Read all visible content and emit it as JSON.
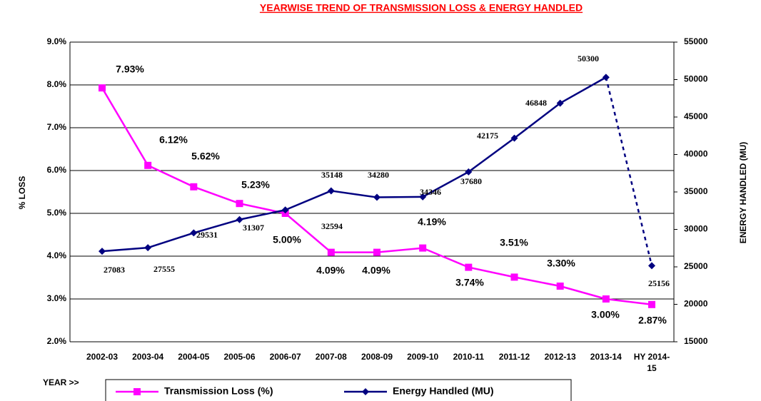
{
  "chart_data": {
    "type": "line",
    "title": "YEARWISE TREND OF TRANSMISSION LOSS & ENERGY HANDLED",
    "x_label": "YEAR >>",
    "y_label": "% LOSS",
    "y2_label": "ENERGY HANDLED (MU)",
    "categories": [
      "2002-03",
      "2003-04",
      "2004-05",
      "2005-06",
      "2006-07",
      "2007-08",
      "2008-09",
      "2009-10",
      "2010-11",
      "2011-12",
      "2012-13",
      "2013-14",
      "HY 2014-15"
    ],
    "series": [
      {
        "name": "Transmission Loss (%)",
        "color": "#ff00ff",
        "marker": "square",
        "values": [
          7.93,
          6.12,
          5.62,
          5.23,
          5.0,
          4.09,
          4.09,
          4.19,
          3.74,
          3.51,
          3.3,
          3.0,
          2.87
        ],
        "value_labels": [
          "7.93%",
          "6.12%",
          "5.62%",
          "5.23%",
          "5.00%",
          "4.09%",
          "4.09%",
          "4.19%",
          "3.74%",
          "3.51%",
          "3.30%",
          "3.00%",
          "2.87%"
        ]
      },
      {
        "name": "Energy Handled (MU)",
        "color": "#000080",
        "marker": "diamond",
        "axis": "y2",
        "dash_last": true,
        "values": [
          27083,
          27555,
          29531,
          31307,
          32594,
          35148,
          34280,
          34346,
          37680,
          42175,
          46848,
          50300,
          25156
        ]
      }
    ],
    "ylim": [
      2,
      9
    ],
    "yticks": [
      {
        "value": 2,
        "label": "2.0%"
      },
      {
        "value": 3,
        "label": "3.0%"
      },
      {
        "value": 4,
        "label": "4.0%"
      },
      {
        "value": 5,
        "label": "5.0%"
      },
      {
        "value": 6,
        "label": "6.0%"
      },
      {
        "value": 7,
        "label": "7.0%"
      },
      {
        "value": 8,
        "label": "8.0%"
      },
      {
        "value": 9,
        "label": "9.0%"
      }
    ],
    "y2lim": [
      15000,
      55000
    ],
    "y2ticks": [
      15000,
      20000,
      25000,
      30000,
      35000,
      40000,
      45000,
      50000,
      55000
    ],
    "grid": true,
    "legend": "bottom"
  }
}
